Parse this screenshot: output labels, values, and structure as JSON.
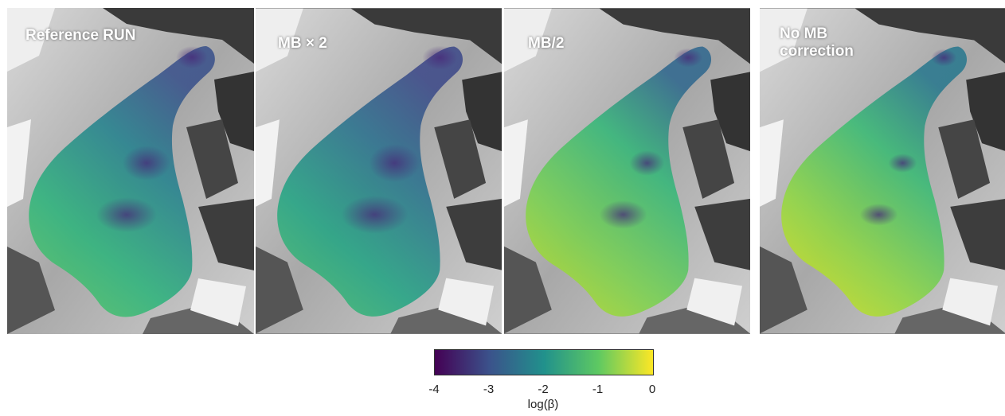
{
  "panels": [
    {
      "label": "Reference RUN",
      "variant": "ref"
    },
    {
      "label": "MB × 2",
      "variant": "x2"
    },
    {
      "label": "MB/2",
      "variant": "half"
    },
    {
      "label": "No MB\ncorrection",
      "variant": "nomb"
    }
  ],
  "colorbar": {
    "label": "log(β)",
    "ticks": [
      "-4",
      "-3",
      "-2",
      "-1",
      "0"
    ],
    "range": [
      -4,
      0
    ],
    "colormap": "viridis",
    "colors": [
      "#440154",
      "#3b528b",
      "#21918c",
      "#5ec962",
      "#fde725"
    ]
  }
}
